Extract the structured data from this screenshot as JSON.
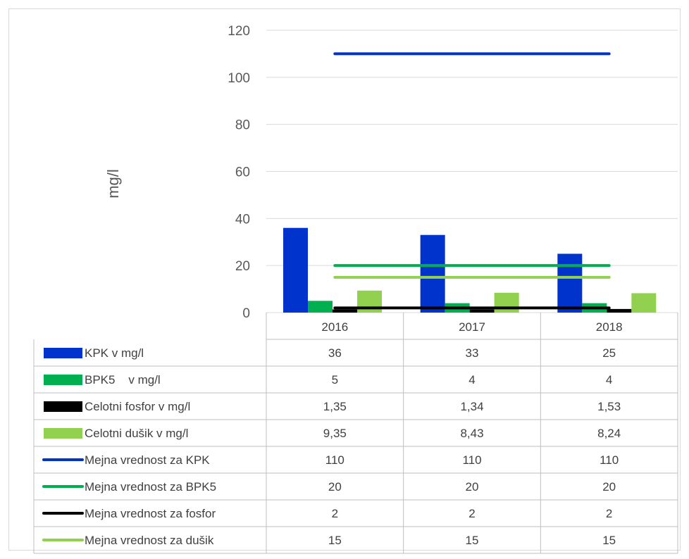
{
  "chart_data": {
    "type": "bar",
    "categories": [
      "2016",
      "2017",
      "2018"
    ],
    "ylabel": "mg/l",
    "ylim": [
      0,
      120
    ],
    "yticks": [
      0,
      20,
      40,
      60,
      80,
      100,
      120
    ],
    "grid": true,
    "legend": "data-table-below",
    "series": [
      {
        "name": "KPK v mg/l",
        "kind": "bar",
        "color": "#0033cc",
        "values": [
          36,
          33,
          25
        ],
        "labels": [
          "36",
          "33",
          "25"
        ]
      },
      {
        "name": "BPK5    v mg/l",
        "kind": "bar",
        "color": "#00b050",
        "values": [
          5,
          4,
          4
        ],
        "labels": [
          "5",
          "4",
          "4"
        ]
      },
      {
        "name": "Celotni fosfor v mg/l",
        "kind": "bar",
        "color": "#000000",
        "values": [
          1.35,
          1.34,
          1.53
        ],
        "labels": [
          "1,35",
          "1,34",
          "1,53"
        ]
      },
      {
        "name": "Celotni dušik v mg/l",
        "kind": "bar",
        "color": "#92d050",
        "values": [
          9.35,
          8.43,
          8.24
        ],
        "labels": [
          "9,35",
          "8,43",
          "8,24"
        ]
      },
      {
        "name": "Mejna vrednost za KPK",
        "kind": "line",
        "color": "#0033cc",
        "values": [
          110,
          110,
          110
        ],
        "labels": [
          "110",
          "110",
          "110"
        ]
      },
      {
        "name": "Mejna vrednost za BPK5",
        "kind": "line",
        "color": "#00b050",
        "values": [
          20,
          20,
          20
        ],
        "labels": [
          "20",
          "20",
          "20"
        ]
      },
      {
        "name": "Mejna vrednost za fosfor",
        "kind": "line",
        "color": "#000000",
        "values": [
          2,
          2,
          2
        ],
        "labels": [
          "2",
          "2",
          "2"
        ]
      },
      {
        "name": "Mejna vrednost za dušik",
        "kind": "line",
        "color": "#92d050",
        "values": [
          15,
          15,
          15
        ],
        "labels": [
          "15",
          "15",
          "15"
        ]
      }
    ]
  }
}
